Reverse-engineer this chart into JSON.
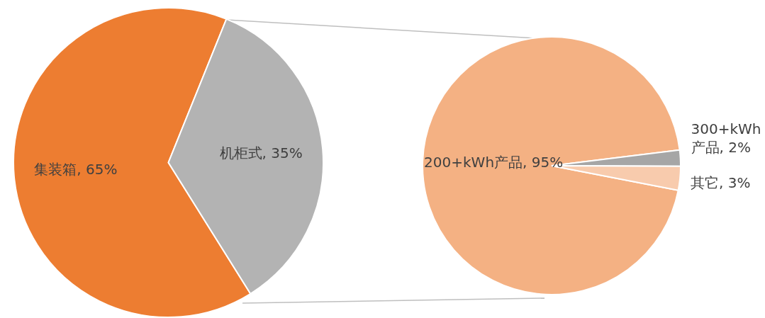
{
  "chart_data": [
    {
      "type": "pie",
      "categories": [
        "集装箱",
        "机柜式"
      ],
      "values": [
        65,
        35
      ],
      "value_labels": [
        "65%",
        "35%"
      ],
      "colors": [
        "#ed7d31",
        "#b3b3b3"
      ],
      "legend": false
    },
    {
      "type": "pie",
      "categories": [
        "200+kWh产品",
        "300+kWh产品",
        "其它"
      ],
      "values": [
        95,
        2,
        3
      ],
      "value_labels": [
        "95%",
        "2%",
        "3%"
      ],
      "colors": [
        "#f4b183",
        "#a6a6a6",
        "#f8cbad"
      ],
      "legend": false
    }
  ]
}
